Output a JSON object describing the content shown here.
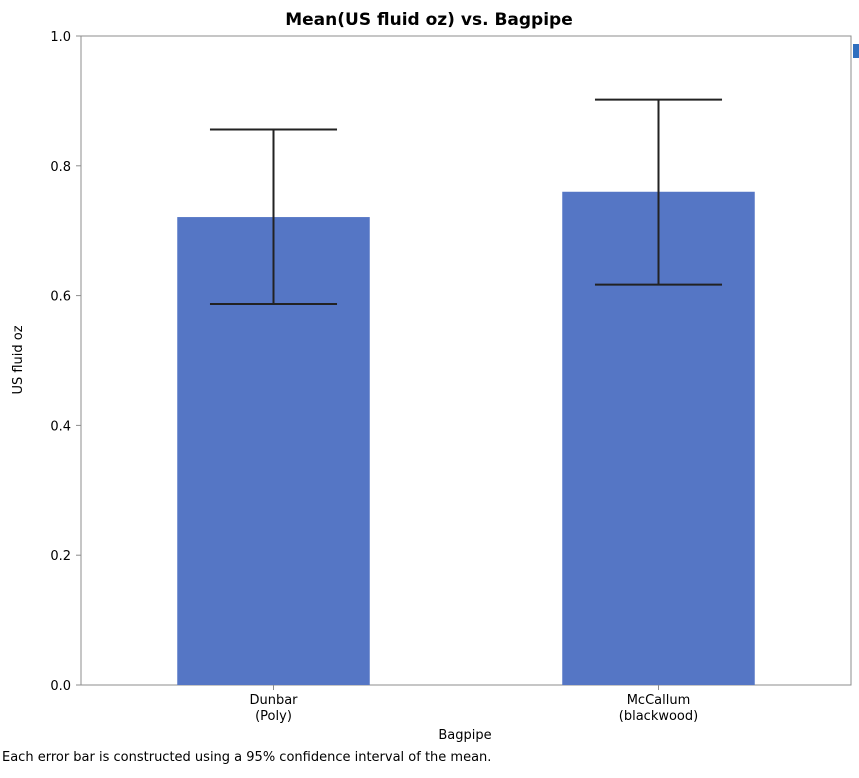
{
  "chart_data": {
    "type": "bar",
    "title": "Mean(US fluid oz) vs. Bagpipe",
    "xlabel": "Bagpipe",
    "ylabel": "US fluid oz",
    "categories": [
      {
        "line1": "Dunbar",
        "line2": "(Poly)"
      },
      {
        "line1": "McCallum",
        "line2": "(blackwood)"
      }
    ],
    "values": [
      0.721,
      0.76
    ],
    "error_low": [
      0.587,
      0.617
    ],
    "error_high": [
      0.856,
      0.902
    ],
    "ylim": [
      0,
      1.0
    ],
    "yticks": [
      "0.0",
      "0.2",
      "0.4",
      "0.6",
      "0.8",
      "1.0"
    ],
    "bar_color": "#5576C5",
    "error_bar_color": "#222222",
    "grid": false,
    "legend": "none"
  },
  "footnote": "Each error bar is constructed using a 95% confidence interval of the mean."
}
